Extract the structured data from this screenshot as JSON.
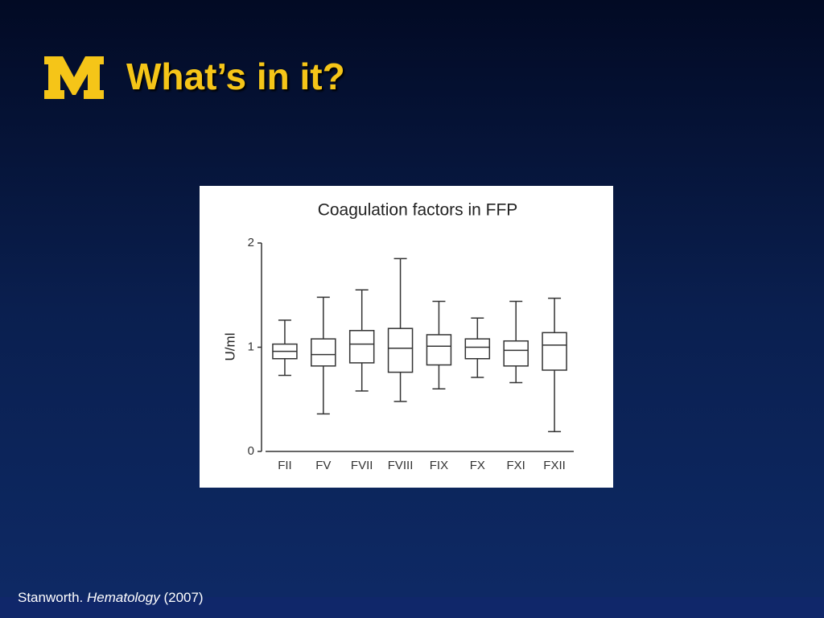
{
  "slide": {
    "title": "What’s in it?",
    "citation": {
      "author": "Stanworth.",
      "journal": "Hematology",
      "year": "(2007)"
    }
  },
  "chart_data": {
    "type": "box",
    "title": "Coagulation factors in FFP",
    "y_label": "U/ml",
    "categories": [
      "FII",
      "FV",
      "FVII",
      "FVIII",
      "FIX",
      "FX",
      "FXI",
      "FXII"
    ],
    "min": [
      0.73,
      0.36,
      0.58,
      0.48,
      0.6,
      0.71,
      0.66,
      0.19
    ],
    "q1": [
      0.89,
      0.82,
      0.85,
      0.76,
      0.83,
      0.89,
      0.82,
      0.78
    ],
    "median": [
      0.96,
      0.93,
      1.03,
      0.99,
      1.01,
      1.0,
      0.97,
      1.02
    ],
    "q3": [
      1.03,
      1.08,
      1.16,
      1.18,
      1.12,
      1.08,
      1.06,
      1.14
    ],
    "max": [
      1.26,
      1.48,
      1.55,
      1.85,
      1.44,
      1.28,
      1.44,
      1.47
    ],
    "color": "#333333",
    "ylim": [
      0,
      2
    ],
    "yticks": [
      0,
      1,
      2
    ]
  }
}
